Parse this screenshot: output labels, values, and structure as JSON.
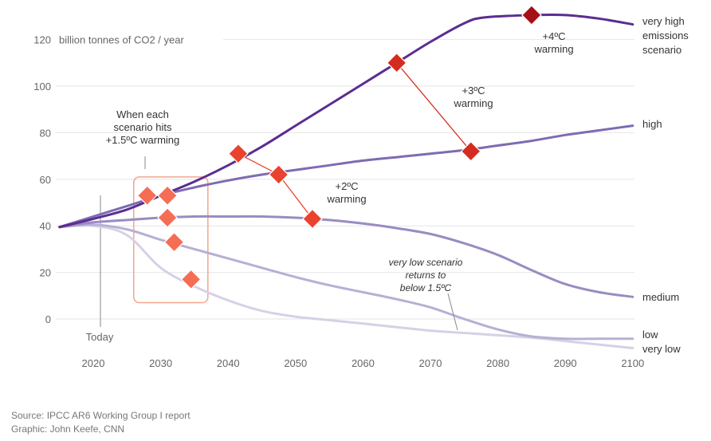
{
  "chart_data": {
    "type": "line",
    "title": "",
    "ylabel": "billion tonnes of CO2 / year",
    "xlim": [
      2015,
      2100
    ],
    "ylim": [
      -10,
      130
    ],
    "x_ticks": [
      2020,
      2030,
      2040,
      2050,
      2060,
      2070,
      2080,
      2090,
      2100
    ],
    "y_ticks": [
      0,
      20,
      40,
      60,
      80,
      100,
      120
    ],
    "grid": true,
    "today": {
      "x": 2020,
      "label": "Today"
    },
    "series": [
      {
        "name": "very high emissions scenario",
        "name_lines": [
          "very high",
          "emissions",
          "scenario"
        ],
        "color": "#5b2d91",
        "width": 3,
        "points": [
          [
            2015,
            39.5
          ],
          [
            2020,
            43
          ],
          [
            2025,
            47
          ],
          [
            2030,
            53
          ],
          [
            2035,
            59
          ],
          [
            2040,
            66
          ],
          [
            2045,
            74
          ],
          [
            2050,
            83
          ],
          [
            2055,
            92
          ],
          [
            2060,
            101
          ],
          [
            2065,
            110
          ],
          [
            2070,
            119
          ],
          [
            2075,
            127
          ],
          [
            2078,
            129.5
          ],
          [
            2085,
            130.5
          ],
          [
            2090,
            130.5
          ],
          [
            2095,
            129
          ],
          [
            2100,
            126.5
          ]
        ]
      },
      {
        "name": "high",
        "color": "#7e6bb2",
        "width": 3,
        "points": [
          [
            2015,
            39.5
          ],
          [
            2020,
            44
          ],
          [
            2025,
            48.5
          ],
          [
            2030,
            53
          ],
          [
            2035,
            56.5
          ],
          [
            2040,
            59.5
          ],
          [
            2045,
            62
          ],
          [
            2050,
            64
          ],
          [
            2055,
            66
          ],
          [
            2060,
            68
          ],
          [
            2065,
            69.5
          ],
          [
            2070,
            71
          ],
          [
            2075,
            72.5
          ],
          [
            2080,
            74.5
          ],
          [
            2085,
            76.5
          ],
          [
            2090,
            79
          ],
          [
            2095,
            81
          ],
          [
            2100,
            83
          ]
        ]
      },
      {
        "name": "medium",
        "color": "#9a8bc2",
        "width": 3,
        "points": [
          [
            2015,
            39.5
          ],
          [
            2020,
            41.5
          ],
          [
            2025,
            42.5
          ],
          [
            2030,
            43.5
          ],
          [
            2035,
            44
          ],
          [
            2040,
            44
          ],
          [
            2045,
            44
          ],
          [
            2050,
            43.5
          ],
          [
            2055,
            42.5
          ],
          [
            2060,
            41
          ],
          [
            2065,
            39
          ],
          [
            2070,
            36.5
          ],
          [
            2075,
            32.5
          ],
          [
            2080,
            27.5
          ],
          [
            2085,
            21
          ],
          [
            2090,
            15
          ],
          [
            2095,
            11.5
          ],
          [
            2100,
            9.5
          ]
        ]
      },
      {
        "name": "low",
        "color": "#b8afd4",
        "width": 3,
        "points": [
          [
            2015,
            39.5
          ],
          [
            2020,
            40.5
          ],
          [
            2025,
            38.5
          ],
          [
            2030,
            34
          ],
          [
            2035,
            30
          ],
          [
            2040,
            26
          ],
          [
            2045,
            22
          ],
          [
            2050,
            18
          ],
          [
            2055,
            14.5
          ],
          [
            2060,
            11.5
          ],
          [
            2065,
            8.5
          ],
          [
            2070,
            5
          ],
          [
            2075,
            0
          ],
          [
            2080,
            -4.5
          ],
          [
            2085,
            -7.5
          ],
          [
            2090,
            -8.5
          ],
          [
            2095,
            -8.5
          ],
          [
            2100,
            -8.5
          ]
        ]
      },
      {
        "name": "very low",
        "color": "#d6d1e6",
        "width": 3,
        "points": [
          [
            2015,
            39.5
          ],
          [
            2020,
            40
          ],
          [
            2025,
            36
          ],
          [
            2030,
            22
          ],
          [
            2035,
            14
          ],
          [
            2040,
            8
          ],
          [
            2045,
            3.5
          ],
          [
            2050,
            1
          ],
          [
            2055,
            -0.5
          ],
          [
            2060,
            -2
          ],
          [
            2065,
            -3.5
          ],
          [
            2070,
            -5
          ],
          [
            2075,
            -6
          ],
          [
            2080,
            -7
          ],
          [
            2085,
            -8
          ],
          [
            2090,
            -9.5
          ],
          [
            2095,
            -11
          ],
          [
            2100,
            -12.5
          ]
        ]
      }
    ],
    "markers": {
      "onepoint5": {
        "color": "#f46d54",
        "points": [
          [
            2028,
            53
          ],
          [
            2031,
            53
          ],
          [
            2031,
            43.5
          ],
          [
            2032,
            33
          ],
          [
            2034.5,
            17
          ]
        ]
      },
      "two": {
        "color": "#e94330",
        "points": [
          [
            2041.5,
            71
          ],
          [
            2047.5,
            62
          ],
          [
            2052.5,
            43
          ]
        ]
      },
      "three": {
        "color": "#d42d1f",
        "points": [
          [
            2065,
            110
          ],
          [
            2076,
            72
          ]
        ]
      },
      "four": {
        "color": "#a50f15",
        "points": [
          [
            2085,
            130.5
          ]
        ]
      }
    },
    "highlight_box": {
      "x": [
        2026,
        2037
      ],
      "y": [
        7,
        61
      ]
    },
    "annotations": {
      "onepoint5": [
        "When each",
        "scenario hits",
        "+1.5ºC warming"
      ],
      "two": [
        "+2ºC",
        "warming"
      ],
      "three": [
        "+3ºC",
        "warming"
      ],
      "four": [
        "+4ºC",
        "warming"
      ],
      "verylow_note": [
        "very low scenario",
        "returns to",
        "below 1.5ºC"
      ]
    }
  },
  "footer": {
    "source": "Source: IPCC AR6 Working Group I report",
    "graphic": "Graphic: John Keefe, CNN"
  }
}
